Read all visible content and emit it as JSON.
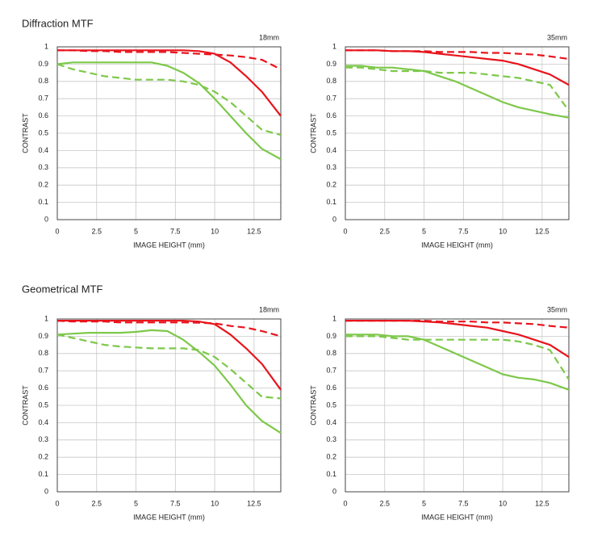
{
  "headings": [
    "Diffraction MTF",
    "Geometrical MTF"
  ],
  "chart_data": [
    {
      "type": "line",
      "title": "18mm",
      "xlabel": "IMAGE HEIGHT (mm)",
      "ylabel": "CONTRAST",
      "xlim": [
        0,
        14.2
      ],
      "xticks": [
        0,
        2.5,
        5,
        7.5,
        10,
        12.5
      ],
      "ylim": [
        0,
        1
      ],
      "yticks": [
        0,
        0.1,
        0.2,
        0.3,
        0.4,
        0.5,
        0.6,
        0.7,
        0.8,
        0.9,
        1
      ],
      "grid": true,
      "x": [
        0,
        1,
        2,
        3,
        4,
        5,
        6,
        7,
        8,
        9,
        10,
        11,
        12,
        13,
        14.2
      ],
      "series": [
        {
          "color": "#e8141c",
          "dashed": false,
          "values": [
            0.98,
            0.98,
            0.98,
            0.98,
            0.98,
            0.98,
            0.98,
            0.98,
            0.98,
            0.975,
            0.96,
            0.91,
            0.83,
            0.74,
            0.6
          ]
        },
        {
          "color": "#e8141c",
          "dashed": true,
          "values": [
            0.98,
            0.98,
            0.975,
            0.975,
            0.97,
            0.97,
            0.97,
            0.97,
            0.965,
            0.96,
            0.955,
            0.95,
            0.94,
            0.925,
            0.87
          ]
        },
        {
          "color": "#7dc84a",
          "dashed": false,
          "values": [
            0.9,
            0.91,
            0.91,
            0.91,
            0.91,
            0.91,
            0.91,
            0.89,
            0.85,
            0.79,
            0.7,
            0.6,
            0.5,
            0.41,
            0.35
          ]
        },
        {
          "color": "#7dc84a",
          "dashed": true,
          "values": [
            0.9,
            0.87,
            0.85,
            0.83,
            0.82,
            0.81,
            0.81,
            0.81,
            0.8,
            0.78,
            0.74,
            0.68,
            0.6,
            0.52,
            0.49
          ]
        }
      ]
    },
    {
      "type": "line",
      "title": "35mm",
      "xlabel": "IMAGE HEIGHT (mm)",
      "ylabel": "CONTRAST",
      "xlim": [
        0,
        14.2
      ],
      "xticks": [
        0,
        2.5,
        5,
        7.5,
        10,
        12.5
      ],
      "ylim": [
        0,
        1
      ],
      "yticks": [
        0,
        0.1,
        0.2,
        0.3,
        0.4,
        0.5,
        0.6,
        0.7,
        0.8,
        0.9,
        1
      ],
      "grid": true,
      "x": [
        0,
        1,
        2,
        3,
        4,
        5,
        6,
        7,
        8,
        9,
        10,
        11,
        12,
        13,
        14.2
      ],
      "series": [
        {
          "color": "#e8141c",
          "dashed": false,
          "values": [
            0.98,
            0.98,
            0.98,
            0.975,
            0.975,
            0.97,
            0.96,
            0.95,
            0.94,
            0.93,
            0.92,
            0.9,
            0.87,
            0.84,
            0.78
          ]
        },
        {
          "color": "#e8141c",
          "dashed": true,
          "values": [
            0.98,
            0.98,
            0.98,
            0.975,
            0.975,
            0.975,
            0.97,
            0.97,
            0.97,
            0.965,
            0.965,
            0.96,
            0.955,
            0.945,
            0.93
          ]
        },
        {
          "color": "#7dc84a",
          "dashed": false,
          "values": [
            0.89,
            0.89,
            0.88,
            0.88,
            0.87,
            0.86,
            0.83,
            0.8,
            0.76,
            0.72,
            0.68,
            0.65,
            0.63,
            0.61,
            0.59
          ]
        },
        {
          "color": "#7dc84a",
          "dashed": true,
          "values": [
            0.88,
            0.88,
            0.87,
            0.86,
            0.86,
            0.86,
            0.85,
            0.85,
            0.85,
            0.84,
            0.83,
            0.82,
            0.8,
            0.78,
            0.63
          ]
        }
      ]
    },
    {
      "type": "line",
      "title": "18mm",
      "xlabel": "IMAGE HEIGHT (mm)",
      "ylabel": "CONTRAST",
      "xlim": [
        0,
        14.2
      ],
      "xticks": [
        0,
        2.5,
        5,
        7.5,
        10,
        12.5
      ],
      "ylim": [
        0,
        1
      ],
      "yticks": [
        0,
        0.1,
        0.2,
        0.3,
        0.4,
        0.5,
        0.6,
        0.7,
        0.8,
        0.9,
        1
      ],
      "grid": true,
      "x": [
        0,
        1,
        2,
        3,
        4,
        5,
        6,
        7,
        8,
        9,
        10,
        11,
        12,
        13,
        14.2
      ],
      "series": [
        {
          "color": "#e8141c",
          "dashed": false,
          "values": [
            0.99,
            0.99,
            0.99,
            0.99,
            0.99,
            0.99,
            0.99,
            0.99,
            0.99,
            0.985,
            0.97,
            0.91,
            0.83,
            0.74,
            0.59
          ]
        },
        {
          "color": "#e8141c",
          "dashed": true,
          "values": [
            0.99,
            0.985,
            0.985,
            0.985,
            0.98,
            0.98,
            0.98,
            0.98,
            0.98,
            0.978,
            0.975,
            0.96,
            0.95,
            0.93,
            0.9
          ]
        },
        {
          "color": "#7dc84a",
          "dashed": false,
          "values": [
            0.91,
            0.915,
            0.92,
            0.92,
            0.92,
            0.925,
            0.935,
            0.93,
            0.88,
            0.81,
            0.73,
            0.62,
            0.5,
            0.41,
            0.34
          ]
        },
        {
          "color": "#7dc84a",
          "dashed": true,
          "values": [
            0.91,
            0.89,
            0.87,
            0.85,
            0.84,
            0.835,
            0.83,
            0.83,
            0.83,
            0.82,
            0.78,
            0.71,
            0.63,
            0.55,
            0.54
          ]
        }
      ]
    },
    {
      "type": "line",
      "title": "35mm",
      "xlabel": "IMAGE HEIGHT (mm)",
      "ylabel": "CONTRAST",
      "xlim": [
        0,
        14.2
      ],
      "xticks": [
        0,
        2.5,
        5,
        7.5,
        10,
        12.5
      ],
      "ylim": [
        0,
        1
      ],
      "yticks": [
        0,
        0.1,
        0.2,
        0.3,
        0.4,
        0.5,
        0.6,
        0.7,
        0.8,
        0.9,
        1
      ],
      "grid": true,
      "x": [
        0,
        1,
        2,
        3,
        4,
        5,
        6,
        7,
        8,
        9,
        10,
        11,
        12,
        13,
        14.2
      ],
      "series": [
        {
          "color": "#e8141c",
          "dashed": false,
          "values": [
            0.99,
            0.99,
            0.99,
            0.99,
            0.99,
            0.985,
            0.98,
            0.97,
            0.96,
            0.95,
            0.93,
            0.91,
            0.88,
            0.85,
            0.78
          ]
        },
        {
          "color": "#e8141c",
          "dashed": true,
          "values": [
            0.99,
            0.99,
            0.99,
            0.99,
            0.99,
            0.99,
            0.985,
            0.985,
            0.985,
            0.98,
            0.98,
            0.975,
            0.97,
            0.96,
            0.95
          ]
        },
        {
          "color": "#7dc84a",
          "dashed": false,
          "values": [
            0.91,
            0.91,
            0.91,
            0.9,
            0.9,
            0.88,
            0.84,
            0.8,
            0.76,
            0.72,
            0.68,
            0.66,
            0.65,
            0.63,
            0.59
          ]
        },
        {
          "color": "#7dc84a",
          "dashed": true,
          "values": [
            0.9,
            0.9,
            0.9,
            0.89,
            0.88,
            0.88,
            0.88,
            0.88,
            0.88,
            0.88,
            0.88,
            0.87,
            0.85,
            0.82,
            0.65
          ]
        }
      ]
    }
  ]
}
